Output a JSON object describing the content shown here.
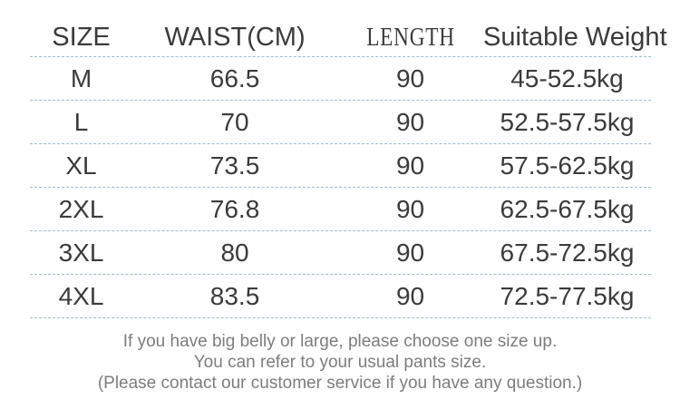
{
  "colors": {
    "background": "#ffffff",
    "table_text": "#3b3b3b",
    "divider_dash": "#a7bbc9",
    "note_text": "#7d7d7d"
  },
  "size_chart": {
    "headers": [
      "SIZE",
      "WAIST(CM)",
      "LENGTH",
      "Suitable Weight"
    ],
    "rows": [
      [
        "M",
        "66.5",
        "90",
        "45-52.5kg"
      ],
      [
        "L",
        "70",
        "90",
        "52.5-57.5kg"
      ],
      [
        "XL",
        "73.5",
        "90",
        "57.5-62.5kg"
      ],
      [
        "2XL",
        "76.8",
        "90",
        "62.5-67.5kg"
      ],
      [
        "3XL",
        "80",
        "90",
        "67.5-72.5kg"
      ],
      [
        "4XL",
        "83.5",
        "90",
        "72.5-77.5kg"
      ]
    ]
  },
  "notes": [
    "If you have big belly or large, please choose one size up.",
    "You can refer to your usual pants size.",
    "(Please contact our customer service if you have any question.)"
  ]
}
